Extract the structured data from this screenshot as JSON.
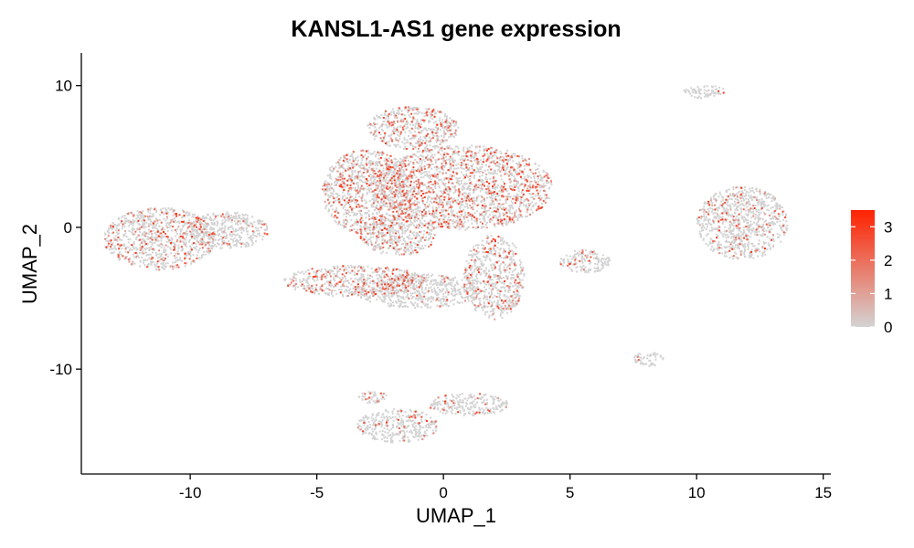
{
  "chart_data": {
    "type": "scatter",
    "title": "KANSL1-AS1 gene expression",
    "xlabel": "UMAP_1",
    "ylabel": "UMAP_2",
    "xlim": [
      -14.3,
      15.3
    ],
    "ylim": [
      -17.4,
      12.3
    ],
    "x_ticks": [
      -10,
      -5,
      0,
      5,
      10,
      15
    ],
    "x_tick_labels": [
      "-10",
      "-5",
      "0",
      "5",
      "10",
      "15"
    ],
    "y_ticks": [
      -10,
      0,
      10
    ],
    "y_tick_labels": [
      "-10",
      "0",
      "10"
    ],
    "grid": false,
    "legend_position": "right",
    "color_scale": {
      "low_color": "#d3d3d3",
      "high_color": "#ff2200",
      "min": 0,
      "max": 3.5,
      "ticks": [
        0,
        1,
        2,
        3
      ],
      "tick_labels": [
        "0",
        "1",
        "2",
        "3"
      ]
    },
    "clusters": [
      {
        "cx": -11.2,
        "cy": -0.8,
        "rx": 2.2,
        "ry": 2.2,
        "high_frac": 0.22
      },
      {
        "cx": -8.5,
        "cy": -0.2,
        "rx": 1.6,
        "ry": 1.3,
        "high_frac": 0.1
      },
      {
        "cx": -1.2,
        "cy": 7.0,
        "rx": 1.8,
        "ry": 1.5,
        "high_frac": 0.25
      },
      {
        "cx": 0.8,
        "cy": 2.8,
        "rx": 3.5,
        "ry": 3.0,
        "high_frac": 0.3
      },
      {
        "cx": -3.0,
        "cy": 2.5,
        "rx": 1.8,
        "ry": 3.0,
        "high_frac": 0.25
      },
      {
        "cx": -3.5,
        "cy": -3.8,
        "rx": 2.8,
        "ry": 1.1,
        "high_frac": 0.25
      },
      {
        "cx": -1.0,
        "cy": -4.5,
        "rx": 2.5,
        "ry": 1.2,
        "high_frac": 0.12
      },
      {
        "cx": 2.0,
        "cy": -3.5,
        "rx": 1.2,
        "ry": 3.0,
        "high_frac": 0.15
      },
      {
        "cx": -1.8,
        "cy": -0.5,
        "rx": 1.5,
        "ry": 1.5,
        "high_frac": 0.2
      },
      {
        "cx": 11.8,
        "cy": 0.3,
        "rx": 1.8,
        "ry": 2.6,
        "high_frac": 0.13
      },
      {
        "cx": 10.3,
        "cy": 9.6,
        "rx": 0.8,
        "ry": 0.5,
        "high_frac": 0.05
      },
      {
        "cx": 8.1,
        "cy": -9.3,
        "rx": 0.6,
        "ry": 0.5,
        "high_frac": 0.05
      },
      {
        "cx": 5.6,
        "cy": -2.4,
        "rx": 1.0,
        "ry": 0.8,
        "high_frac": 0.15
      },
      {
        "cx": -1.8,
        "cy": -14.0,
        "rx": 1.6,
        "ry": 1.2,
        "high_frac": 0.1
      },
      {
        "cx": 1.0,
        "cy": -12.5,
        "rx": 1.6,
        "ry": 0.8,
        "high_frac": 0.08
      },
      {
        "cx": -2.8,
        "cy": -12.0,
        "rx": 0.6,
        "ry": 0.4,
        "high_frac": 0.2
      }
    ]
  }
}
